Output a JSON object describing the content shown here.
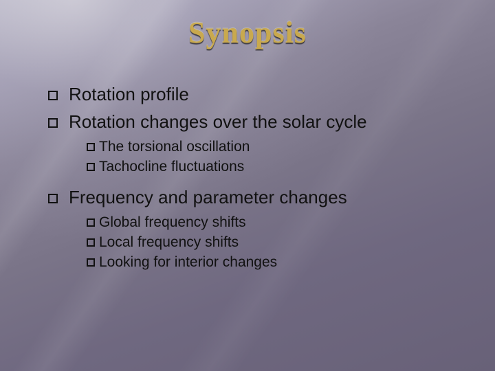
{
  "title": "Synopsis",
  "title_color": "#c9a94e",
  "text_color": "#111111",
  "background_gradient": [
    "#b8b5c5",
    "#686178"
  ],
  "font_title": "Georgia, serif",
  "font_body": "Arial, sans-serif",
  "title_fontsize": 44,
  "level1_fontsize": 26,
  "level2_fontsize": 21,
  "bullet_style": "hollow-square",
  "items": {
    "i0": {
      "label": "Rotation profile"
    },
    "i1": {
      "label": "Rotation changes over the solar cycle",
      "sub": {
        "s0": "The torsional oscillation",
        "s1": "Tachocline fluctuations"
      }
    },
    "i2": {
      "label": "Frequency and parameter changes",
      "sub": {
        "s0": "Global frequency shifts",
        "s1": "Local frequency shifts",
        "s2": "Looking for interior changes"
      }
    }
  }
}
